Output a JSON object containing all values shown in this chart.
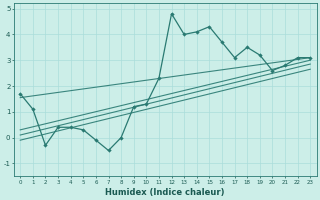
{
  "xlabel": "Humidex (Indice chaleur)",
  "bg_color": "#cceee8",
  "grid_color": "#aaddda",
  "line_color": "#2a7a72",
  "x_data": [
    0,
    1,
    2,
    3,
    4,
    5,
    6,
    7,
    8,
    9,
    10,
    11,
    12,
    13,
    14,
    15,
    16,
    17,
    18,
    19,
    20,
    21,
    22,
    23
  ],
  "y_main": [
    1.7,
    1.1,
    -0.3,
    0.4,
    0.4,
    0.3,
    -0.1,
    -0.5,
    0.0,
    1.2,
    1.3,
    2.3,
    4.8,
    4.0,
    4.1,
    4.3,
    3.7,
    3.1,
    3.5,
    3.2,
    2.6,
    2.8,
    3.1,
    3.1
  ],
  "reg_lines": [
    {
      "x0": 0,
      "y0": 1.55,
      "x1": 23,
      "y1": 3.1
    },
    {
      "x0": 0,
      "y0": 0.3,
      "x1": 23,
      "y1": 3.0
    },
    {
      "x0": 0,
      "y0": 0.1,
      "x1": 23,
      "y1": 2.85
    },
    {
      "x0": 0,
      "y0": -0.1,
      "x1": 23,
      "y1": 2.65
    }
  ],
  "ylim": [
    -1.5,
    5.2
  ],
  "xlim": [
    -0.5,
    23.5
  ],
  "yticks": [
    -1,
    0,
    1,
    2,
    3,
    4,
    5
  ],
  "xticks": [
    0,
    1,
    2,
    3,
    4,
    5,
    6,
    7,
    8,
    9,
    10,
    11,
    12,
    13,
    14,
    15,
    16,
    17,
    18,
    19,
    20,
    21,
    22,
    23
  ]
}
